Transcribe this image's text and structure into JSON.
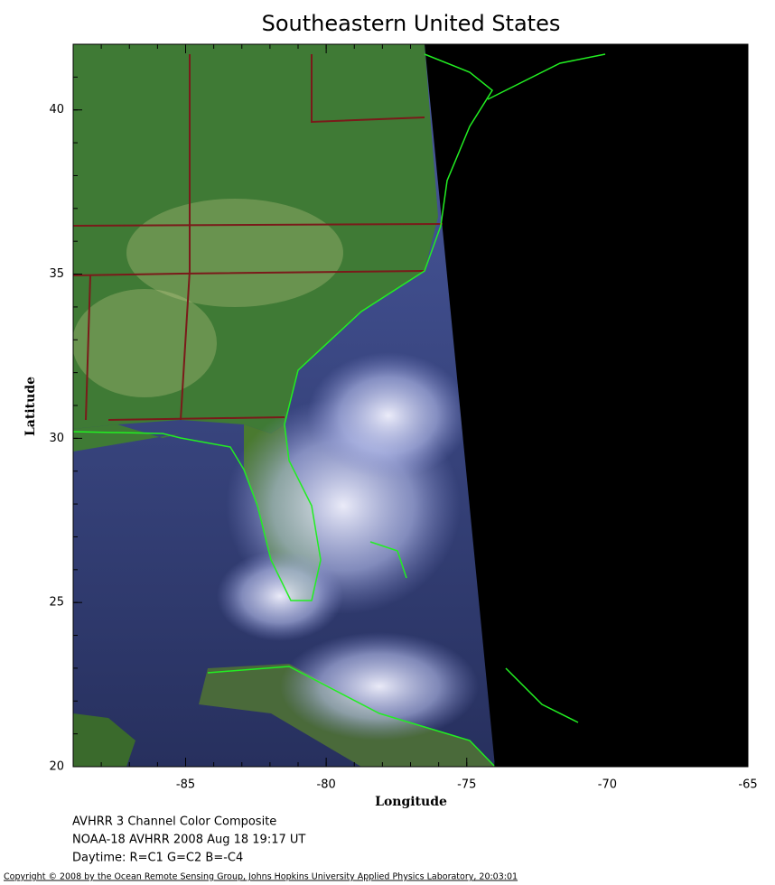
{
  "map": {
    "title": "Southeastern United States",
    "x_label": "Longitude",
    "y_label": "Latitude",
    "xlim": [
      -89,
      -65
    ],
    "ylim": [
      20,
      42
    ],
    "xticks": [
      -85,
      -80,
      -75,
      -70,
      -65
    ],
    "yticks": [
      20,
      25,
      30,
      35,
      40
    ],
    "captions": [
      "AVHRR 3 Channel Color Composite",
      "NOAA-18 AVHRR 2008 Aug 18 19:17 UT",
      "Daytime: R=C1 G=C2 B=-C4"
    ],
    "copyright": "Copyright © 2008 by the Ocean Remote Sensing Group, Johns Hopkins University Applied Physics Laboratory, 20:03:01"
  }
}
